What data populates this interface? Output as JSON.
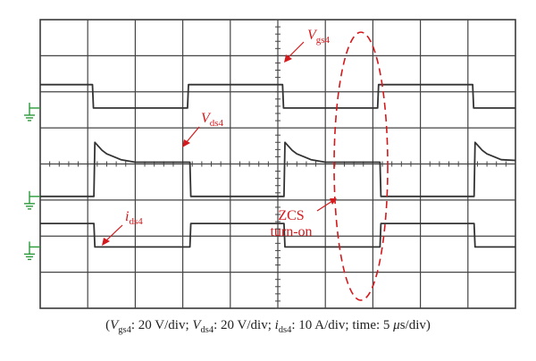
{
  "chart_data": {
    "type": "line",
    "title": "",
    "xlabel": "",
    "ylabel": "",
    "grid": true,
    "x_divisions": 10,
    "y_divisions": 8,
    "series": [
      {
        "name": "Vgs4",
        "color": "#333333",
        "x": [
          0,
          1.1,
          1.12,
          3.1,
          3.12,
          5.1,
          5.12,
          7.1,
          7.12,
          9.1,
          9.12,
          10
        ],
        "y": [
          2.2,
          2.2,
          1.55,
          1.55,
          2.2,
          2.2,
          1.55,
          1.55,
          2.2,
          2.2,
          1.55,
          1.55
        ]
      },
      {
        "name": "Vds4",
        "color": "#333333",
        "x": [
          0,
          1.13,
          1.15,
          1.3,
          1.4,
          1.55,
          1.7,
          2.0,
          3.15,
          3.17,
          5.13,
          5.15,
          5.3,
          5.4,
          5.55,
          5.7,
          6.0,
          7.15,
          7.17,
          9.13,
          9.15,
          9.3,
          9.4,
          9.55,
          9.7,
          10
        ],
        "y": [
          -0.9,
          -0.9,
          0.6,
          0.38,
          0.28,
          0.2,
          0.12,
          0.05,
          0.05,
          -0.9,
          -0.9,
          0.6,
          0.38,
          0.28,
          0.2,
          0.12,
          0.05,
          0.05,
          -0.9,
          -0.9,
          0.6,
          0.38,
          0.28,
          0.2,
          0.12,
          0.1
        ]
      },
      {
        "name": "ids4",
        "color": "#333333",
        "x": [
          0,
          1.13,
          1.15,
          3.15,
          3.17,
          5.13,
          5.15,
          7.15,
          7.17,
          9.13,
          9.15,
          10
        ],
        "y": [
          -1.65,
          -1.65,
          -2.3,
          -2.3,
          -1.65,
          -1.65,
          -2.3,
          -2.3,
          -1.65,
          -1.65,
          -2.3,
          -2.3
        ]
      }
    ],
    "annotations": [
      {
        "main": "V",
        "sub": "gs4",
        "italic": true
      },
      {
        "main": "V",
        "sub": "ds4",
        "italic": true
      },
      {
        "main": "i",
        "sub": "ds4",
        "italic": true
      },
      {
        "line1": "ZCS",
        "line2": "turn-on",
        "italic": false
      }
    ],
    "ground_markers": 3
  },
  "caption": {
    "open": "(",
    "v_main": "V",
    "vgs_sub": "gs4",
    "vgs_rest": ": 20 V/div; ",
    "vds_sub": "ds4",
    "vds_rest": ": 20 V/div; ",
    "i_main": "i",
    "ids_sub": "ds4",
    "ids_rest": ": 10 A/div; time: 5 ",
    "mu": "μ",
    "close": "s/div)"
  },
  "colors": {
    "annotation": "#d4191c",
    "ground": "#2a9a3a",
    "trace": "#333333",
    "grid": "#444444"
  }
}
